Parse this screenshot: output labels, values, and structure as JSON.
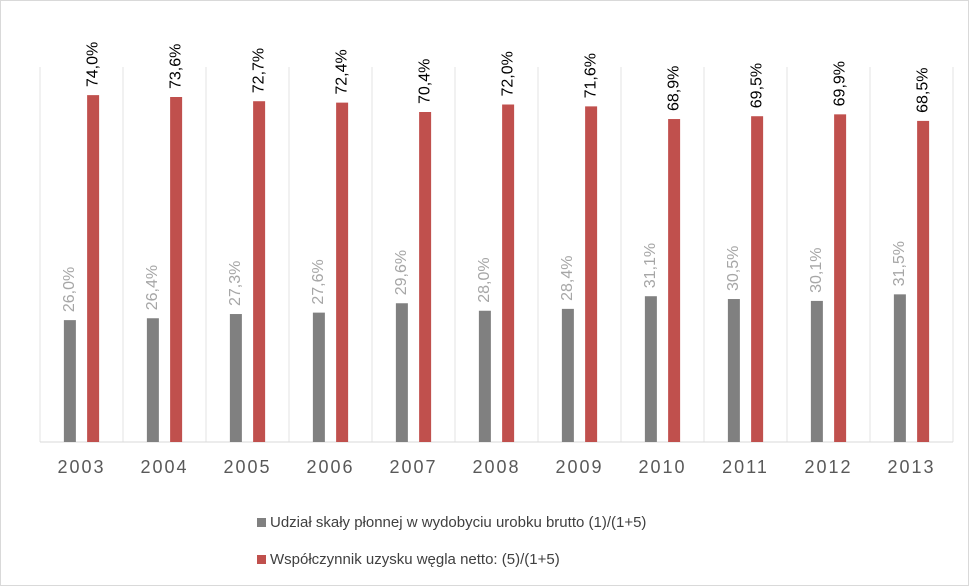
{
  "chart_data": {
    "type": "bar",
    "categories": [
      "2003",
      "2004",
      "2005",
      "2006",
      "2007",
      "2008",
      "2009",
      "2010",
      "2011",
      "2012",
      "2013"
    ],
    "series": [
      {
        "name": "Udział skały płonnej w wydobyciu urobku brutto (1)/(1+5)",
        "color": "#808080",
        "values": [
          26.0,
          26.4,
          27.3,
          27.6,
          29.6,
          28.0,
          28.4,
          31.1,
          30.5,
          30.1,
          31.5
        ],
        "value_labels": [
          "26,0%",
          "26,4%",
          "27,3%",
          "27,6%",
          "29,6%",
          "28,0%",
          "28,4%",
          "31,1%",
          "30,5%",
          "30,1%",
          "31,5%"
        ],
        "label_color": "#a6a6a6"
      },
      {
        "name": "Współczynnik uzysku węgla netto: (5)/(1+5)",
        "color": "#c0504d",
        "values": [
          74.0,
          73.6,
          72.7,
          72.4,
          70.4,
          72.0,
          71.6,
          68.9,
          69.5,
          69.9,
          68.5
        ],
        "value_labels": [
          "74,0%",
          "73,6%",
          "72,7%",
          "72,4%",
          "70,4%",
          "72,0%",
          "71,6%",
          "68,9%",
          "69,5%",
          "69,9%",
          "68,5%"
        ],
        "label_color": "#000000"
      }
    ],
    "ylim": [
      0,
      80
    ]
  }
}
